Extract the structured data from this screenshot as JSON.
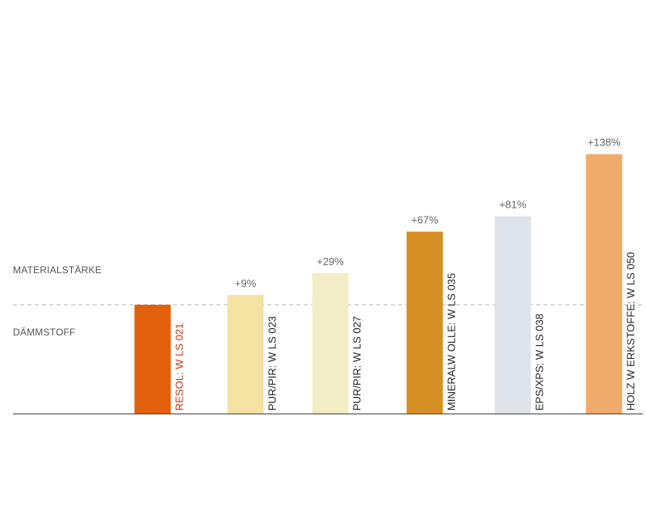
{
  "labels": {
    "upper": "MATERIALSTÄRKE",
    "lower": "DÄMMSTOFF"
  },
  "chart_data": {
    "type": "bar",
    "categories": [
      "RESOL: W LS 021",
      "PUR/PIR: W LS 023",
      "PUR/PIR: W LS 027",
      "MINERALW OLLE: W LS 035",
      "EPS/XPS: W LS 038",
      "HOLZ W ERKSTOFFE: W LS 050"
    ],
    "values": [
      0,
      9,
      29,
      67,
      81,
      138
    ],
    "value_labels": [
      "",
      "+9%",
      "+29%",
      "+67%",
      "+81%",
      "+138%"
    ],
    "colors": [
      "#e3610d",
      "#f5e3a3",
      "#f2edc6",
      "#d68f24",
      "#dfe3ea",
      "#f1ab6b"
    ],
    "category_label_colors": [
      "#cc3311",
      "#222222",
      "#222222",
      "#222222",
      "#222222",
      "#222222"
    ],
    "baseline_label": "MATERIALSTÄRKE",
    "grid": false
  }
}
